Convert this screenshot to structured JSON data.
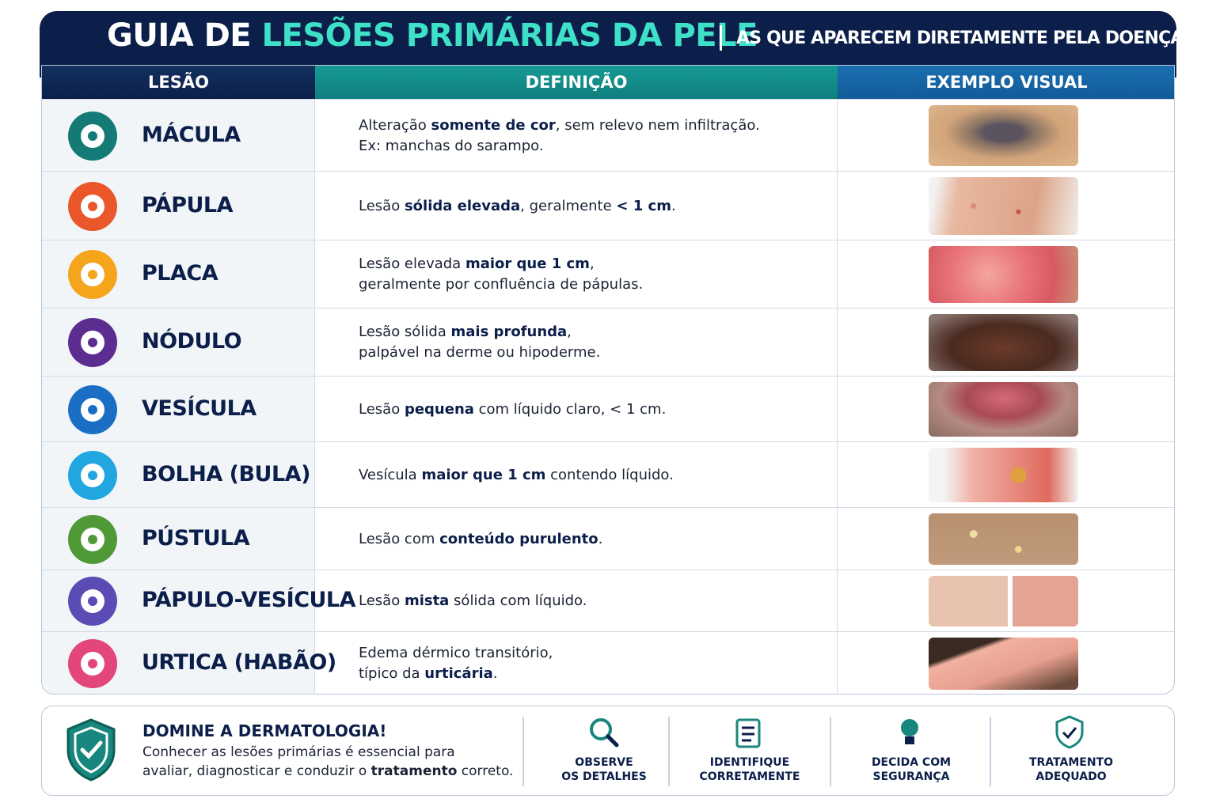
{
  "header": {
    "title": "GUIA DE",
    "title_highlight": "LESÕES PRIMÁRIAS DA PELE",
    "subtitle": "AS QUE APARECEM DIRETAMENTE PELA DOENÇA"
  },
  "table": {
    "columns": [
      "LESÃO",
      "DEFINIÇÃO",
      "EXEMPLO VISUAL"
    ],
    "rows": [
      {
        "name": "MÁCULA",
        "definition": [
          [
            {
              "t": "Alteração "
            },
            {
              "t": "somente de cor",
              "b": true
            },
            {
              "t": ", sem relevo nem infiltração."
            }
          ],
          [
            {
              "t": "Ex: manchas do sarampo."
            }
          ]
        ]
      },
      {
        "name": "PÁPULA",
        "definition": [
          [
            {
              "t": "Lesão "
            },
            {
              "t": "sólida elevada",
              "b": true
            },
            {
              "t": ", geralmente "
            },
            {
              "t": "< 1 cm",
              "b": true
            },
            {
              "t": "."
            }
          ]
        ]
      },
      {
        "name": "PLACA",
        "definition": [
          [
            {
              "t": "Lesão elevada "
            },
            {
              "t": "maior que 1 cm",
              "b": true
            },
            {
              "t": ","
            }
          ],
          [
            {
              "t": "geralmente por confluência de pápulas."
            }
          ]
        ]
      },
      {
        "name": "NÓDULO",
        "definition": [
          [
            {
              "t": "Lesão sólida "
            },
            {
              "t": "mais profunda",
              "b": true
            },
            {
              "t": ","
            }
          ],
          [
            {
              "t": "palpável na derme ou hipoderme."
            }
          ]
        ]
      },
      {
        "name": "VESÍCULA",
        "definition": [
          [
            {
              "t": "Lesão "
            },
            {
              "t": "pequena",
              "b": true
            },
            {
              "t": " com líquido claro, < 1 cm."
            }
          ]
        ]
      },
      {
        "name": "BOLHA (BULA)",
        "definition": [
          [
            {
              "t": "Vesícula "
            },
            {
              "t": "maior que 1 cm",
              "b": true
            },
            {
              "t": " contendo líquido."
            }
          ]
        ]
      },
      {
        "name": "PÚSTULA",
        "definition": [
          [
            {
              "t": "Lesão com "
            },
            {
              "t": "conteúdo purulento",
              "b": true
            },
            {
              "t": "."
            }
          ]
        ]
      },
      {
        "name": "PÁPULO-VESÍCULA",
        "definition": [
          [
            {
              "t": "Lesão "
            },
            {
              "t": "mista",
              "b": true
            },
            {
              "t": " sólida com líquido."
            }
          ]
        ]
      },
      {
        "name": "URTICA (HABÃO)",
        "definition": [
          [
            {
              "t": "Edema dérmico transitório,"
            }
          ],
          [
            {
              "t": "típico da "
            },
            {
              "t": "urticária",
              "b": true
            },
            {
              "t": "."
            }
          ]
        ]
      }
    ]
  },
  "footer": {
    "title": "DOMINE A DERMATOLOGIA!",
    "text": [
      [
        {
          "t": "Conhecer as lesões primárias é essencial para"
        }
      ],
      [
        {
          "t": "avaliar, diagnosticar e conduzir o "
        },
        {
          "t": "tratamento",
          "b": true
        },
        {
          "t": " correto."
        }
      ]
    ],
    "features": [
      [
        "OBSERVE",
        "OS DETALHES"
      ],
      [
        "IDENTIFIQUE",
        "CORRETAMENTE"
      ],
      [
        "DECIDA COM",
        "SEGURANÇA"
      ],
      [
        "TRATAMENTO",
        "ADEQUADO"
      ]
    ]
  }
}
